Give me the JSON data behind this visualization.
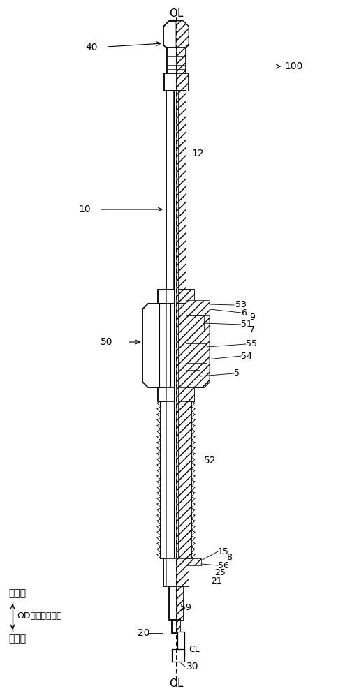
{
  "bg_color": "#ffffff",
  "labels": {
    "OL_top": "OL",
    "OL_bottom": "OL",
    "label_40": "40",
    "label_100": "100",
    "label_10": "10",
    "label_12": "12",
    "label_50": "50",
    "label_53": "53",
    "label_6": "6",
    "label_9": "9",
    "label_51": "51",
    "label_7": "7",
    "label_55": "55",
    "label_54": "54",
    "label_5": "5",
    "label_52": "52",
    "label_15": "15",
    "label_8": "8",
    "label_56": "56",
    "label_25": "25",
    "label_21": "21",
    "label_59": "59",
    "label_CL": "CL",
    "label_20": "20",
    "label_30": "30",
    "text_base": "基端侧",
    "text_OD": "OD（轴线方向）",
    "text_top": "顶端侧"
  },
  "figsize": [
    5.04,
    10.0
  ],
  "dpi": 100
}
